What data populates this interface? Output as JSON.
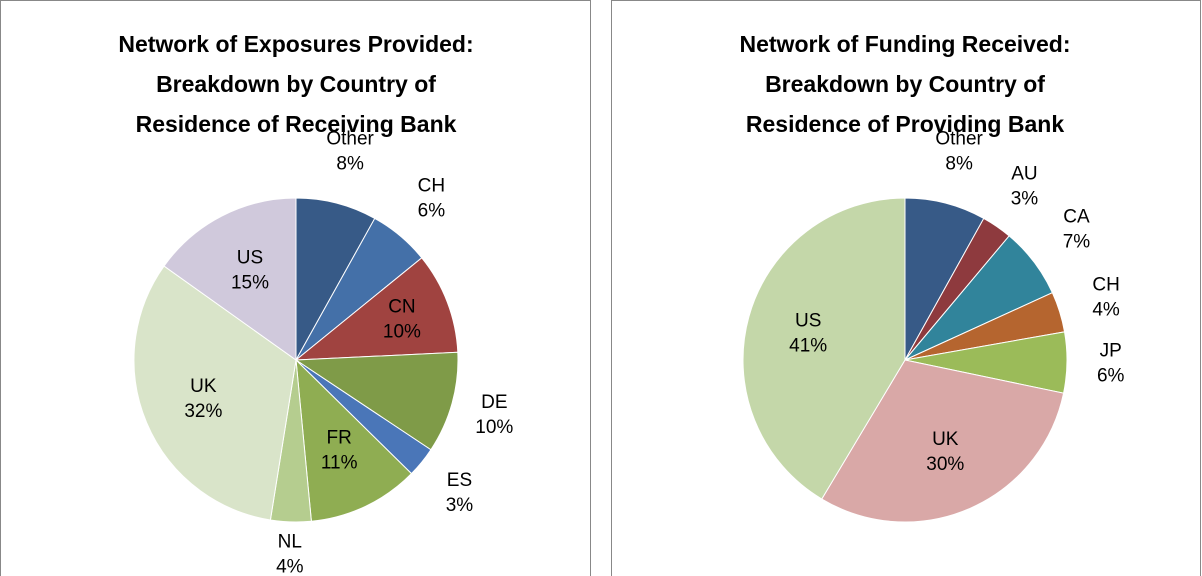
{
  "chart_data": [
    {
      "type": "pie",
      "title": [
        "Network of Exposures Provided:",
        "Breakdown by Country of",
        "Residence of Receiving Bank"
      ],
      "categories": [
        "Other",
        "CH",
        "CN",
        "DE",
        "ES",
        "FR",
        "NL",
        "UK",
        "US"
      ],
      "values": [
        8,
        6,
        10,
        10,
        3,
        11,
        4,
        32,
        15
      ],
      "value_labels": [
        "8%",
        "6%",
        "10%",
        "10%",
        "3%",
        "11%",
        "4%",
        "32%",
        "15%"
      ],
      "colors": [
        "#375a87",
        "#4470a8",
        "#a04340",
        "#7f9b48",
        "#4a76b8",
        "#8fad52",
        "#b5cd8f",
        "#d9e4c9",
        "#d0c9dc"
      ]
    },
    {
      "type": "pie",
      "title": [
        "Network of Funding Received:",
        "Breakdown by Country of",
        "Residence of Providing Bank"
      ],
      "categories": [
        "Other",
        "AU",
        "CA",
        "CH",
        "JP",
        "UK",
        "US"
      ],
      "values": [
        8,
        3,
        7,
        4,
        6,
        30,
        41
      ],
      "value_labels": [
        "8%",
        "3%",
        "7%",
        "4%",
        "6%",
        "30%",
        "41%"
      ],
      "colors": [
        "#375a87",
        "#8e3a3e",
        "#31849b",
        "#b5652f",
        "#9bbb59",
        "#d9a8a7",
        "#c4d7a9"
      ]
    }
  ]
}
